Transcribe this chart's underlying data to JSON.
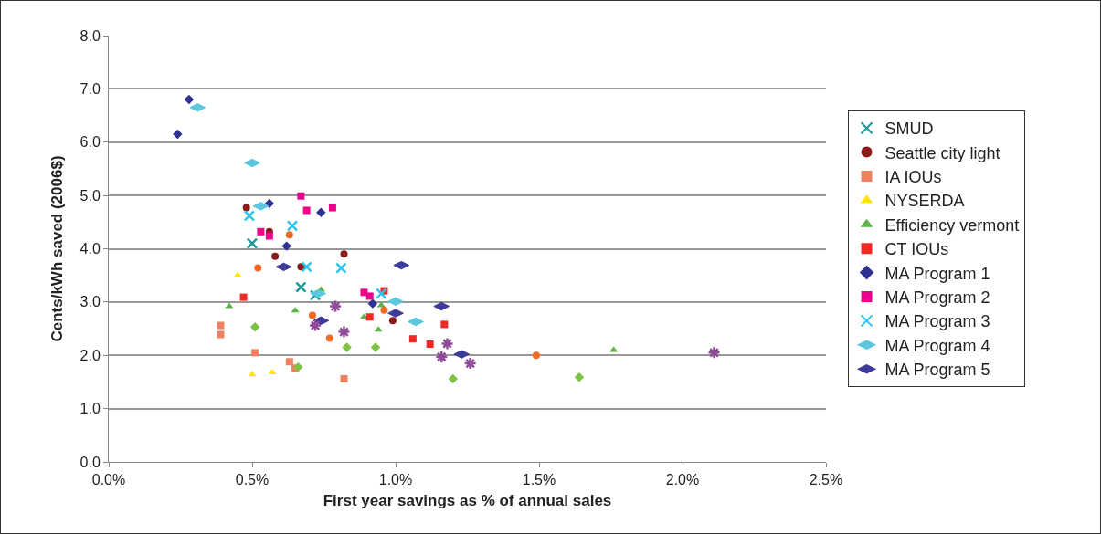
{
  "chart_data": {
    "type": "scatter",
    "xlabel": "First year savings as % of annual sales",
    "ylabel": "Cents/kWh saved (2006$)",
    "xlim": [
      0,
      2.5
    ],
    "xticks": [
      {
        "value": 0,
        "label": "0.0%"
      },
      {
        "value": 0.5,
        "label": "0.5%"
      },
      {
        "value": 1,
        "label": "1.0%"
      },
      {
        "value": 1.5,
        "label": "1.5%"
      },
      {
        "value": 2,
        "label": "2.0%"
      },
      {
        "value": 2.5,
        "label": "2.5%"
      }
    ],
    "ylim": [
      0,
      8
    ],
    "yticks": [
      {
        "value": 0,
        "label": "0.0"
      },
      {
        "value": 1,
        "label": "1.0"
      },
      {
        "value": 2,
        "label": "2.0"
      },
      {
        "value": 3,
        "label": "3.0"
      },
      {
        "value": 4,
        "label": "4.0"
      },
      {
        "value": 5,
        "label": "5.0"
      },
      {
        "value": 6,
        "label": "6.0"
      },
      {
        "value": 7,
        "label": "7.0"
      },
      {
        "value": 8,
        "label": "8.0"
      }
    ],
    "grid": "y",
    "legend": "right",
    "series": [
      {
        "color": "#f26b21",
        "marker": "circle",
        "x": [
          0.52,
          0.63,
          0.71,
          0.77,
          0.96,
          1.49
        ],
        "values": [
          3.64,
          4.26,
          2.75,
          2.32,
          2.85,
          2.0
        ]
      },
      {
        "color": "#7dc242",
        "marker": "diamond",
        "x": [
          0.51,
          0.66,
          0.83,
          0.93,
          1.2,
          1.64
        ],
        "values": [
          2.53,
          1.78,
          2.15,
          2.15,
          1.56,
          1.59
        ]
      },
      {
        "color": "#8e4b97",
        "marker": "cross",
        "x": [
          0.72,
          0.82,
          0.79,
          1.16,
          1.18,
          1.26,
          2.11
        ],
        "values": [
          2.56,
          2.44,
          2.92,
          1.97,
          2.22,
          1.85,
          2.05
        ]
      },
      {
        "name": "SMUD",
        "color": "#1b9a9a",
        "marker": "cross",
        "x": [
          0.5,
          0.67,
          0.72
        ],
        "values": [
          4.1,
          3.28,
          3.13
        ]
      },
      {
        "name": "Seattle city light",
        "color": "#8b1a1a",
        "marker": "circle",
        "x": [
          0.48,
          0.56,
          0.58,
          0.67,
          0.82,
          0.99
        ],
        "values": [
          4.77,
          4.32,
          3.86,
          3.66,
          3.9,
          2.65
        ]
      },
      {
        "name": "IA IOUs",
        "color": "#f08060",
        "marker": "square",
        "x": [
          0.39,
          0.39,
          0.51,
          0.63,
          0.65,
          0.82
        ],
        "values": [
          2.56,
          2.39,
          2.05,
          1.88,
          1.76,
          1.56
        ]
      },
      {
        "name": "NYSERDA",
        "color": "#ffe500",
        "marker": "triangle",
        "x": [
          0.45,
          0.5,
          0.57
        ],
        "values": [
          3.5,
          1.64,
          1.68
        ]
      },
      {
        "name": "Efficiency vermont",
        "color": "#5cb346",
        "marker": "triangle",
        "x": [
          0.42,
          0.65,
          0.74,
          0.89,
          0.94,
          0.95,
          1.76
        ],
        "values": [
          2.92,
          2.84,
          3.23,
          2.72,
          2.48,
          2.94,
          2.1
        ]
      },
      {
        "name": "CT IOUs",
        "color": "#ee2a24",
        "marker": "square",
        "x": [
          0.47,
          0.91,
          0.96,
          1.06,
          1.12,
          1.17
        ],
        "values": [
          3.09,
          2.72,
          3.21,
          2.31,
          2.21,
          2.58
        ]
      },
      {
        "name": "MA Program 1",
        "color": "#2e3192",
        "marker": "diamond",
        "x": [
          0.24,
          0.28,
          0.56,
          0.62,
          0.74,
          0.92
        ],
        "values": [
          6.15,
          6.8,
          4.85,
          4.05,
          4.68,
          2.97
        ]
      },
      {
        "name": "MA Program 2",
        "color": "#ec008c",
        "marker": "square",
        "x": [
          0.53,
          0.56,
          0.67,
          0.69,
          0.78,
          0.89,
          0.91
        ],
        "values": [
          4.32,
          4.24,
          4.99,
          4.72,
          4.77,
          3.18,
          3.11
        ]
      },
      {
        "name": "MA Program 3",
        "color": "#29c5f0",
        "marker": "cross",
        "x": [
          0.49,
          0.64,
          0.69,
          0.81,
          0.95
        ],
        "values": [
          4.62,
          4.43,
          3.66,
          3.64,
          3.16
        ]
      },
      {
        "name": "MA Program 4",
        "color": "#5bc8e0",
        "x": [
          0.31,
          0.5,
          0.53,
          0.73,
          1.0,
          1.07
        ],
        "values": [
          6.65,
          5.61,
          4.8,
          3.16,
          3.01,
          2.63
        ]
      },
      {
        "name": "MA Program 5",
        "color": "#3d3a9a",
        "x": [
          0.61,
          0.74,
          1.0,
          1.02,
          1.16,
          1.23
        ],
        "values": [
          3.66,
          2.65,
          2.79,
          3.69,
          2.92,
          2.02
        ]
      }
    ]
  }
}
